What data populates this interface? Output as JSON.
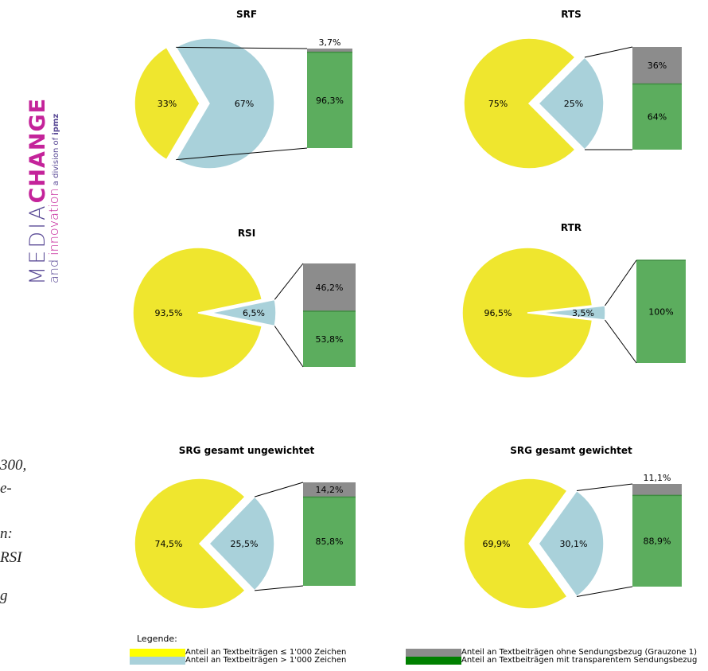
{
  "logo": {
    "media": "MEDIA",
    "change": "CHANGE",
    "and_innovation_1": "and ",
    "and_innovation_2": "innovation",
    "division": " a division of ",
    "ipmz": "ipmz"
  },
  "side_text": [
    "300,",
    "e-",
    "n:",
    "RSI",
    "g"
  ],
  "colors": {
    "yellow": "#efe62e",
    "lightblue": "#a9d1da",
    "gray": "#8c8c8c",
    "green": "#5cad5e",
    "legend_yellow": "#ffff00",
    "legend_lightblue": "#a9d1da",
    "legend_gray": "#8c8c8c",
    "legend_green": "#008000"
  },
  "legend": {
    "title": "Legende:",
    "items": [
      {
        "label": "Anteil an Textbeiträgen ≤ 1'000 Zeichen",
        "color": "#ffff00"
      },
      {
        "label": "Anteil an Textbeiträgen > 1'000 Zeichen",
        "color": "#a9d1da"
      },
      {
        "label": "Anteil an Textbeiträgen ohne Sendungsbezug (Grauzone 1)",
        "color": "#8c8c8c"
      },
      {
        "label": "Anteil an Textbeiträgen mit transparentem Sendungsbezug",
        "color": "#008000"
      }
    ]
  },
  "chart_data": [
    {
      "type": "pie",
      "title": "SRF",
      "slices": [
        {
          "label": "33%",
          "value": 33
        },
        {
          "label": "67%",
          "value": 67
        }
      ],
      "breakdown": [
        {
          "label": "3,7%",
          "value": 3.7
        },
        {
          "label": "96,3%",
          "value": 96.3
        }
      ]
    },
    {
      "type": "pie",
      "title": "RTS",
      "slices": [
        {
          "label": "75%",
          "value": 75
        },
        {
          "label": "25%",
          "value": 25
        }
      ],
      "breakdown": [
        {
          "label": "36%",
          "value": 36
        },
        {
          "label": "64%",
          "value": 64
        }
      ]
    },
    {
      "type": "pie",
      "title": "RSI",
      "slices": [
        {
          "label": "93,5%",
          "value": 93.5
        },
        {
          "label": "6,5%",
          "value": 6.5
        }
      ],
      "breakdown": [
        {
          "label": "46,2%",
          "value": 46.2
        },
        {
          "label": "53,8%",
          "value": 53.8
        }
      ]
    },
    {
      "type": "pie",
      "title": "RTR",
      "slices": [
        {
          "label": "96,5%",
          "value": 96.5
        },
        {
          "label": "3,5%",
          "value": 3.5
        }
      ],
      "breakdown": [
        {
          "label": "",
          "value": 0
        },
        {
          "label": "100%",
          "value": 100
        }
      ]
    },
    {
      "type": "pie",
      "title": "SRG gesamt ungewichtet",
      "slices": [
        {
          "label": "74,5%",
          "value": 74.5
        },
        {
          "label": "25,5%",
          "value": 25.5
        }
      ],
      "breakdown": [
        {
          "label": "14,2%",
          "value": 14.2
        },
        {
          "label": "85,8%",
          "value": 85.8
        }
      ]
    },
    {
      "type": "pie",
      "title": "SRG gesamt gewichtet",
      "slices": [
        {
          "label": "69,9%",
          "value": 69.9
        },
        {
          "label": "30,1%",
          "value": 30.1
        }
      ],
      "breakdown": [
        {
          "label": "11,1%",
          "value": 11.1
        },
        {
          "label": "88,9%",
          "value": 88.9
        }
      ]
    }
  ]
}
